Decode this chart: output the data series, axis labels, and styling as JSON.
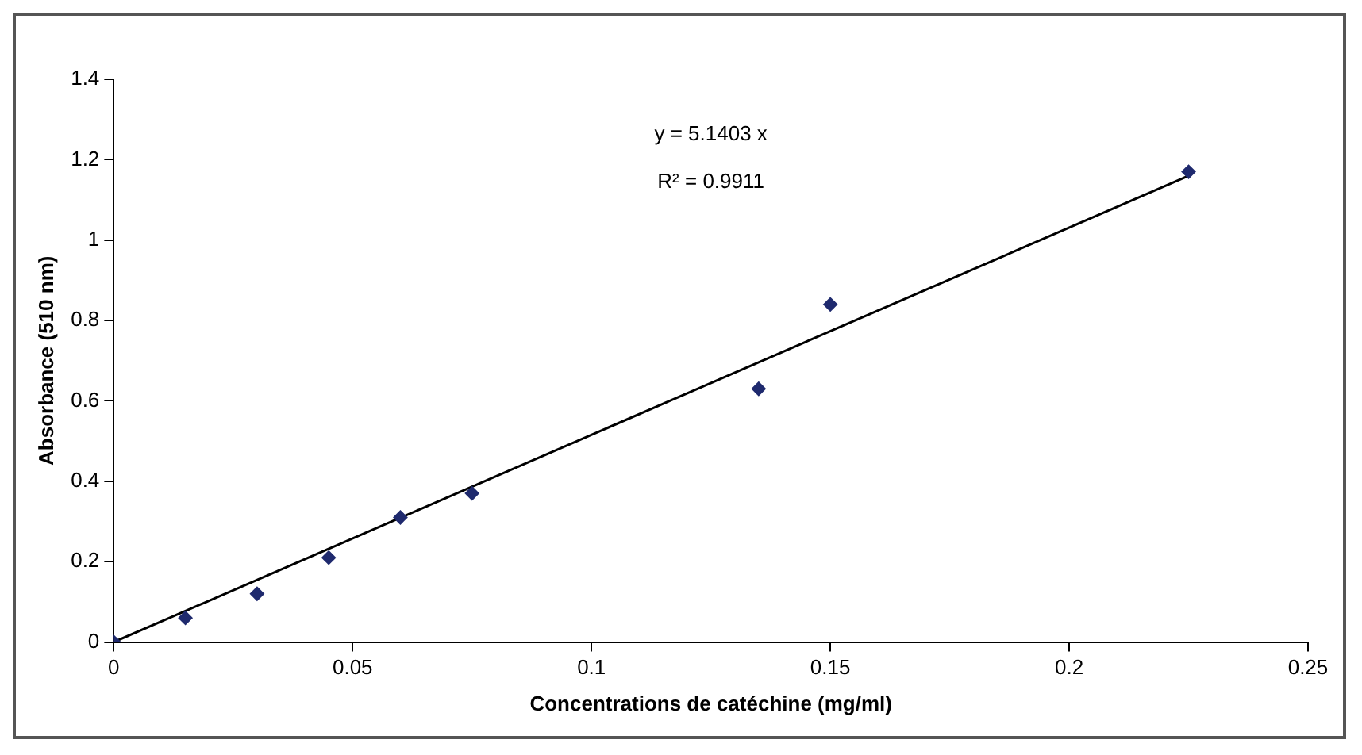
{
  "chart_data": {
    "type": "scatter",
    "xlabel": "Concentrations de catéchine (mg/ml)",
    "ylabel": "Absorbance (510 nm)",
    "annotations": [
      "y = 5.1403 x",
      "R² = 0.9911"
    ],
    "series": [
      {
        "type": "scatter",
        "marker": "diamond",
        "color": "#1f2a6e",
        "x": [
          0,
          0.015,
          0.03,
          0.045,
          0.06,
          0.075,
          0.135,
          0.15,
          0.225
        ],
        "values": [
          0,
          0.06,
          0.12,
          0.21,
          0.31,
          0.37,
          0.63,
          0.84,
          1.17
        ]
      },
      {
        "type": "line",
        "marker": "none",
        "color": "#000000",
        "x": [
          0,
          0.225
        ],
        "values": [
          0,
          1.16
        ]
      }
    ],
    "xlim": [
      0,
      0.25
    ],
    "xticks": [
      0,
      0.05,
      0.1,
      0.15,
      0.2,
      0.25
    ],
    "ylim": [
      0,
      1.4
    ],
    "yticks": [
      0,
      0.2,
      0.4,
      0.6,
      0.8,
      1,
      1.2,
      1.4
    ],
    "grid": false,
    "legend": false,
    "line_style": "solid"
  }
}
